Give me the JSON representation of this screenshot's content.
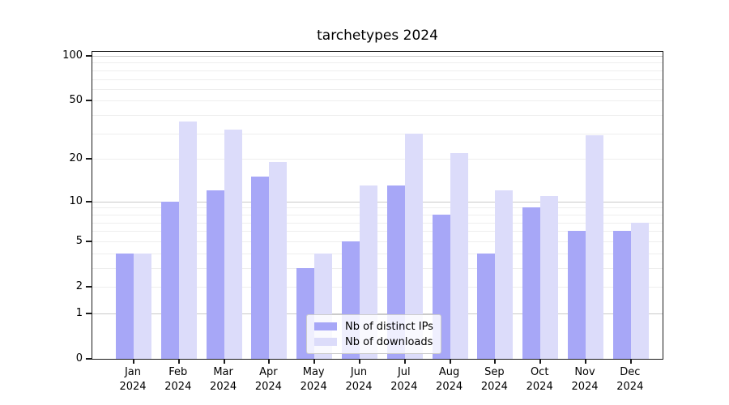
{
  "chart_data": {
    "type": "bar",
    "title": "tarchetypes 2024",
    "categories": [
      "Jan",
      "Feb",
      "Mar",
      "Apr",
      "May",
      "Jun",
      "Jul",
      "Aug",
      "Sep",
      "Oct",
      "Nov",
      "Dec"
    ],
    "year_label": "2024",
    "series": [
      {
        "name": "Nb of distinct IPs",
        "color": "#a7a7f7",
        "values": [
          4,
          10,
          12,
          15,
          3,
          5,
          13,
          8,
          4,
          9,
          6,
          6
        ]
      },
      {
        "name": "Nb of downloads",
        "color": "#dcdcfa",
        "values": [
          4,
          36,
          32,
          19,
          4,
          13,
          30,
          22,
          12,
          11,
          29,
          7
        ]
      }
    ],
    "y_scale": "log1p",
    "y_ticks": [
      100,
      50,
      20,
      10,
      5,
      2,
      1,
      0
    ],
    "y_grid_major": [
      1,
      10,
      100
    ],
    "y_grid_minor": [
      2,
      3,
      4,
      5,
      6,
      7,
      8,
      9,
      20,
      30,
      40,
      50,
      60,
      70,
      80,
      90
    ],
    "ylim": [
      0,
      106
    ],
    "xlabel": "",
    "ylabel": "",
    "grid": "horizontal",
    "legend_position": "lower center"
  }
}
